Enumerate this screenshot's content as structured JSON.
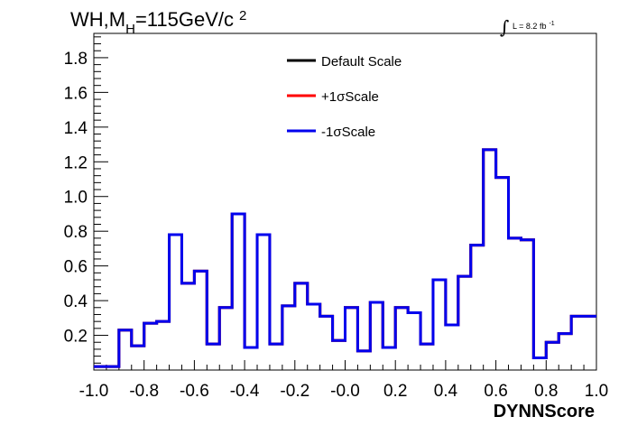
{
  "chart_data": {
    "type": "line",
    "step": true,
    "title": {
      "prefix": "WH,M",
      "subscript": "H",
      "suffix": "=115GeV/c",
      "superscript": "2"
    },
    "luminosity": {
      "symbol": "∫",
      "text": "L = 8.2 fb",
      "superscript": "-1"
    },
    "xlabel": "DYNNScore",
    "ylabel": "",
    "xlim": [
      -1.0,
      1.0
    ],
    "ylim": [
      0.0,
      1.94
    ],
    "x_ticks": [
      "-1.0",
      "-0.8",
      "-0.6",
      "-0.4",
      "-0.2",
      "-0.0",
      "0.2",
      "0.4",
      "0.6",
      "0.8",
      "1.0"
    ],
    "y_ticks": [
      "0.2",
      "0.4",
      "0.6",
      "0.8",
      "1.0",
      "1.2",
      "1.4",
      "1.6",
      "1.8"
    ],
    "grid": false,
    "legend_position": "top-center",
    "bin_edges": [
      -1.0,
      -0.95,
      -0.9,
      -0.85,
      -0.8,
      -0.75,
      -0.7,
      -0.65,
      -0.6,
      -0.55,
      -0.5,
      -0.45,
      -0.4,
      -0.35,
      -0.3,
      -0.25,
      -0.2,
      -0.15,
      -0.1,
      -0.05,
      0.0,
      0.05,
      0.1,
      0.15,
      0.2,
      0.25,
      0.3,
      0.35,
      0.4,
      0.45,
      0.5,
      0.55,
      0.6,
      0.65,
      0.7,
      0.75,
      0.8,
      0.85,
      0.9,
      0.95,
      1.0
    ],
    "series": [
      {
        "name": "Default Scale",
        "color": "#000000",
        "values": [
          0.02,
          0.02,
          0.23,
          0.14,
          0.27,
          0.28,
          0.78,
          0.5,
          0.57,
          0.15,
          0.36,
          0.9,
          0.13,
          0.78,
          0.15,
          0.37,
          0.5,
          0.38,
          0.31,
          0.17,
          0.36,
          0.11,
          0.39,
          0.13,
          0.36,
          0.33,
          0.15,
          0.52,
          0.26,
          0.54,
          0.72,
          1.27,
          1.11,
          0.76,
          0.75,
          0.07,
          0.16,
          0.21,
          0.31,
          0.31
        ]
      },
      {
        "name": "+1σScale",
        "color": "#ff0000",
        "values": [
          0.02,
          0.02,
          0.23,
          0.14,
          0.27,
          0.28,
          0.78,
          0.5,
          0.57,
          0.15,
          0.36,
          0.9,
          0.13,
          0.78,
          0.15,
          0.37,
          0.5,
          0.38,
          0.31,
          0.17,
          0.36,
          0.11,
          0.39,
          0.13,
          0.36,
          0.33,
          0.15,
          0.52,
          0.26,
          0.54,
          0.72,
          1.27,
          1.11,
          0.76,
          0.75,
          0.07,
          0.16,
          0.21,
          0.31,
          0.31
        ]
      },
      {
        "name": "-1σScale",
        "color": "#0000ee",
        "values": [
          0.02,
          0.02,
          0.23,
          0.14,
          0.27,
          0.28,
          0.78,
          0.5,
          0.57,
          0.15,
          0.36,
          0.9,
          0.13,
          0.78,
          0.15,
          0.37,
          0.5,
          0.38,
          0.31,
          0.17,
          0.36,
          0.11,
          0.39,
          0.13,
          0.36,
          0.33,
          0.15,
          0.52,
          0.26,
          0.54,
          0.72,
          1.27,
          1.11,
          0.76,
          0.75,
          0.07,
          0.16,
          0.21,
          0.31,
          0.31
        ]
      }
    ]
  }
}
